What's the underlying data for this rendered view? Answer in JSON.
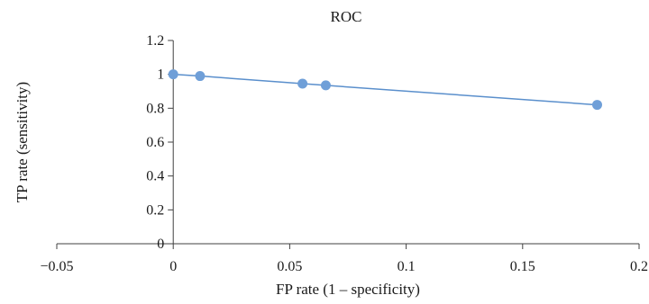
{
  "chart_data": {
    "type": "scatter",
    "title": "ROC",
    "xlabel": "FP rate (1 – specificity)",
    "ylabel": "TP rate (sensitivity)",
    "xlim": [
      -0.05,
      0.2
    ],
    "ylim": [
      0,
      1.2
    ],
    "x_ticks": [
      -0.05,
      0,
      0.05,
      0.1,
      0.15,
      0.2
    ],
    "x_tick_labels": [
      "−0.05",
      "0",
      "0.05",
      "0.1",
      "0.15",
      "0.2"
    ],
    "y_ticks": [
      0,
      0.2,
      0.4,
      0.6,
      0.8,
      1,
      1.2
    ],
    "y_tick_labels": [
      "0",
      "0.2",
      "0.4",
      "0.6",
      "0.8",
      "1",
      "1.2"
    ],
    "grid": false,
    "legend": "none",
    "connect_points": true,
    "series": [
      {
        "x": [
          0,
          0.0115,
          0.0555,
          0.0655,
          0.182
        ],
        "y": [
          1,
          0.99,
          0.945,
          0.935,
          0.82
        ],
        "color": "#6f9fd8",
        "line_color": "#5a8fcc"
      }
    ]
  }
}
